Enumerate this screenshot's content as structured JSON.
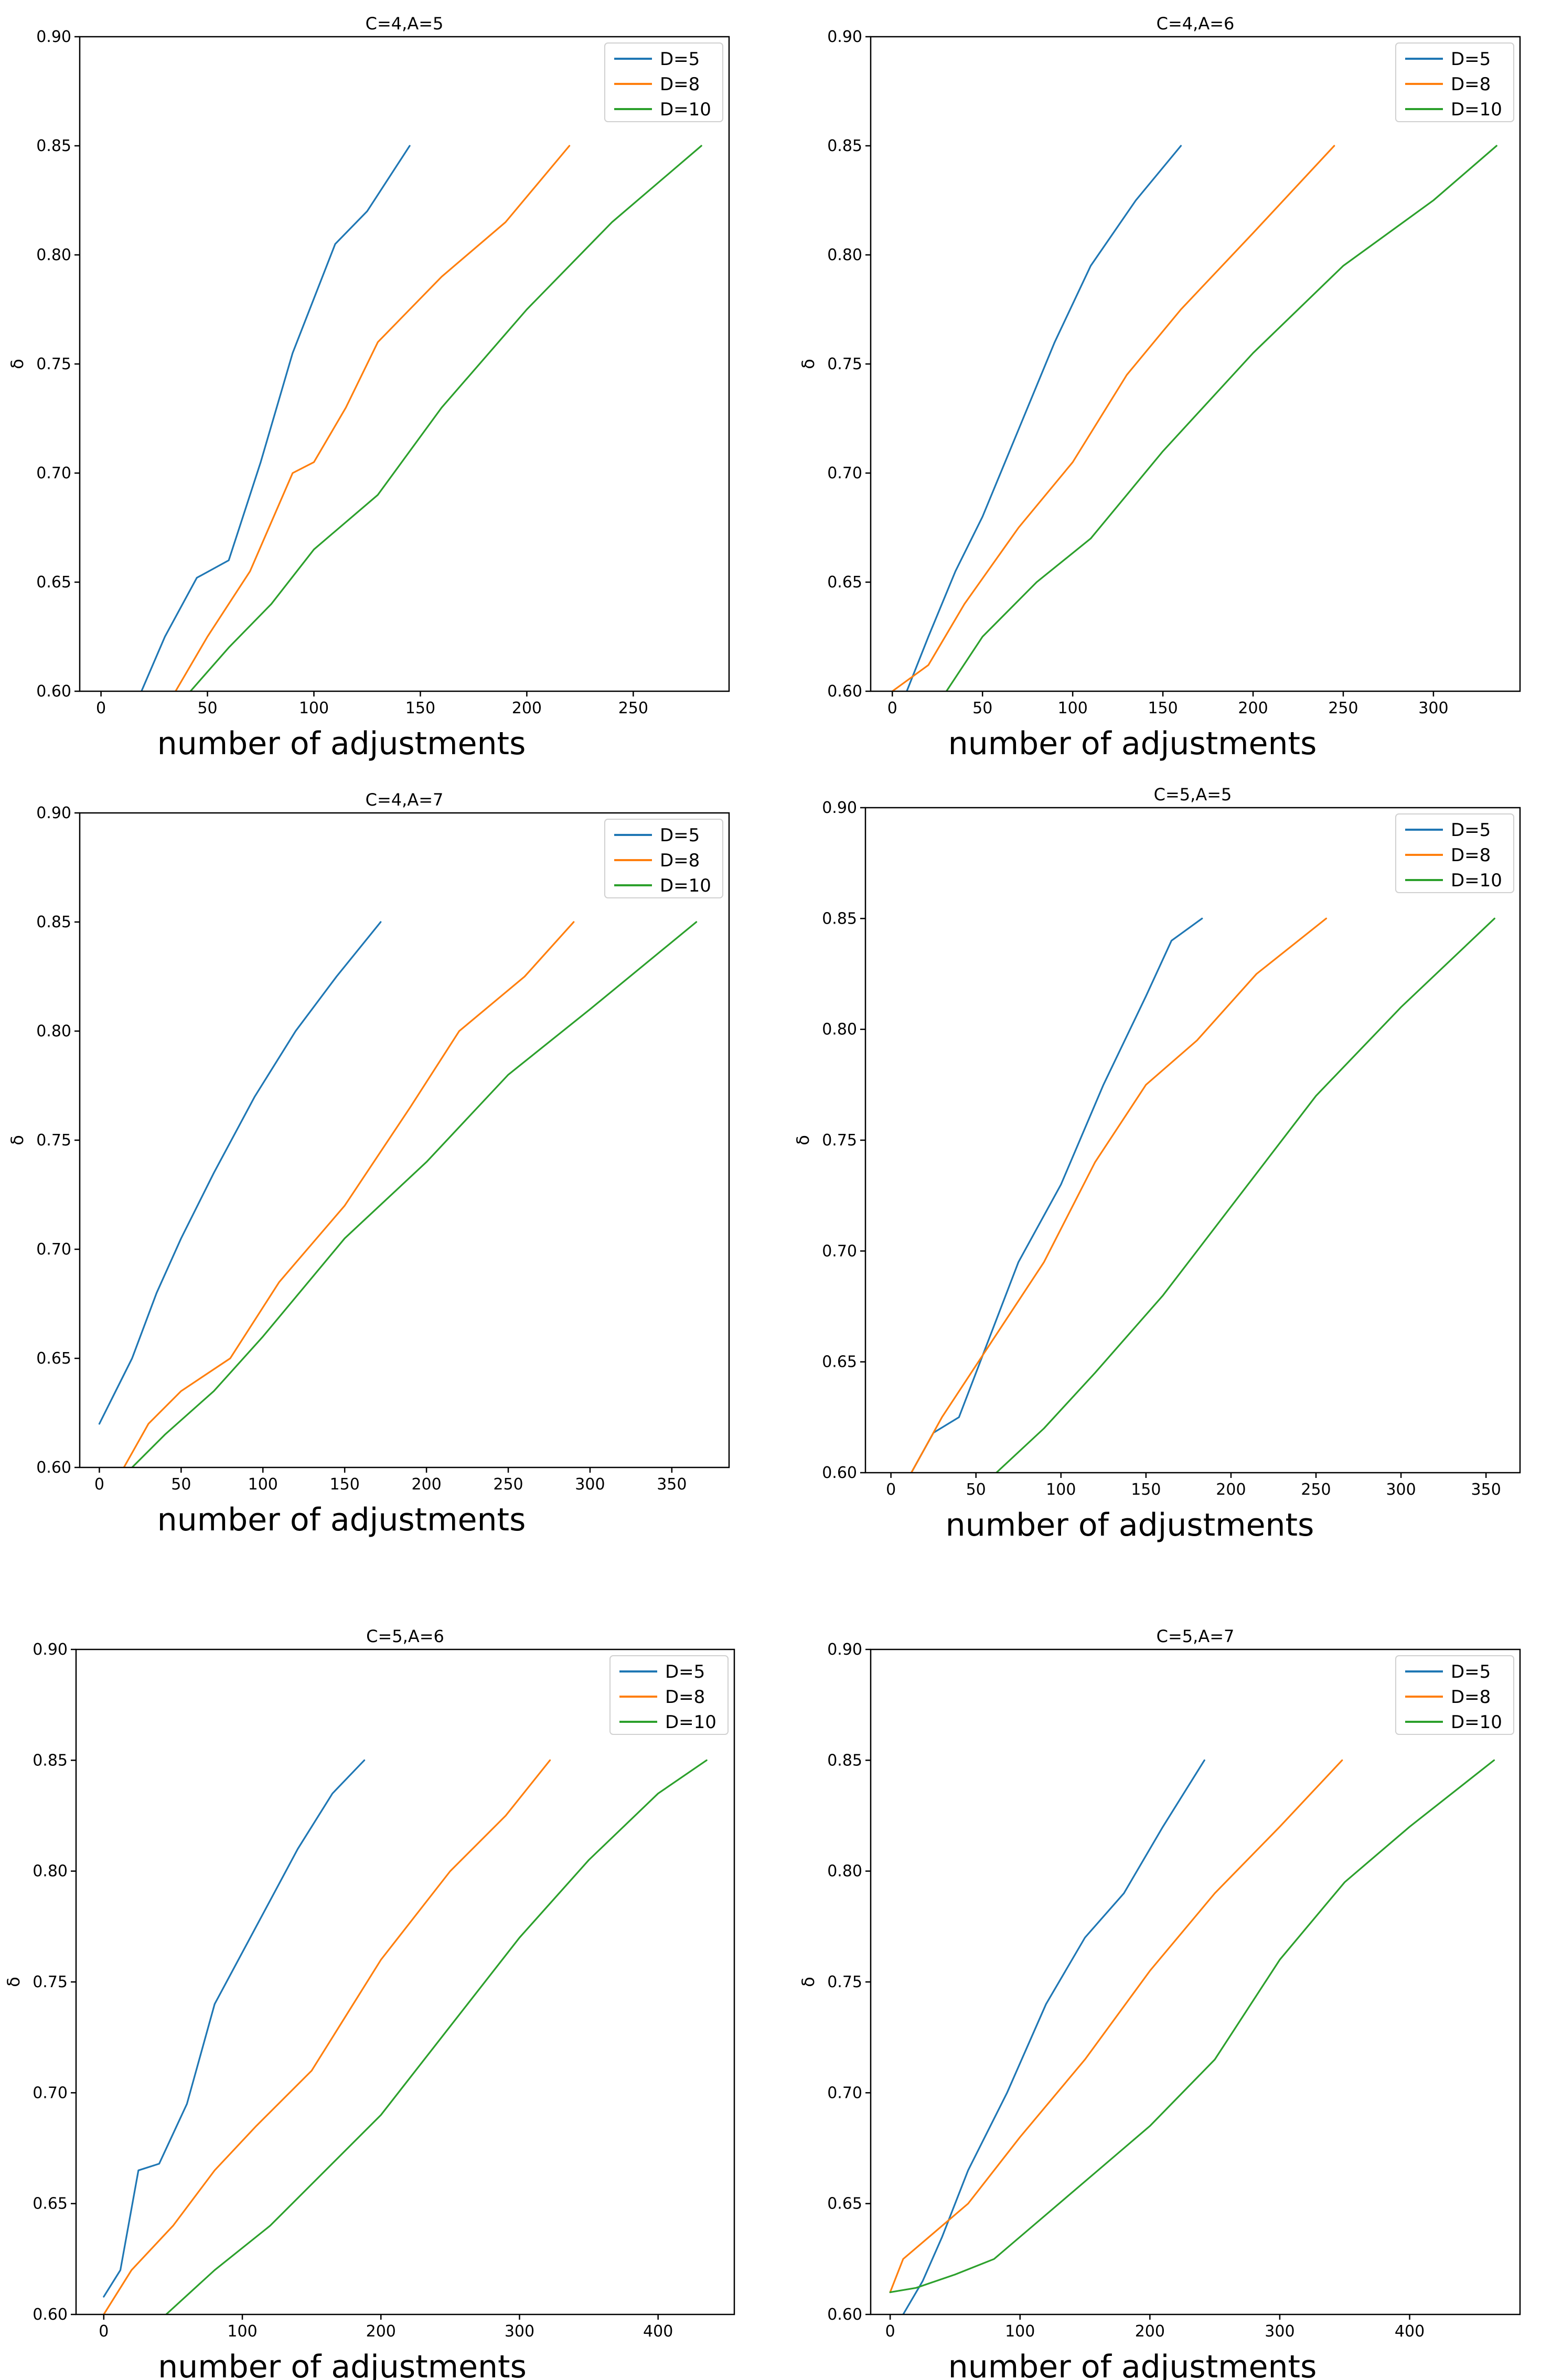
{
  "colors": {
    "D=5": "#1f77b4",
    "D=8": "#ff7f0e",
    "D=10": "#2ca02c"
  },
  "chart_data": [
    {
      "type": "line",
      "title": "C=4,A=5",
      "xlabel": "number of adjustments",
      "ylabel": "δ",
      "xlim": [
        -10,
        295
      ],
      "ylim": [
        0.6,
        0.9
      ],
      "xticks": [
        0,
        50,
        100,
        150,
        200,
        250
      ],
      "yticks": [
        0.6,
        0.65,
        0.7,
        0.75,
        0.8,
        0.85,
        0.9
      ],
      "ytick_labels": [
        "0.60",
        "0.65",
        "0.70",
        "0.75",
        "0.80",
        "0.85",
        "0.90"
      ],
      "legend": [
        "D=5",
        "D=8",
        "D=10"
      ],
      "series": [
        {
          "name": "D=5",
          "points": [
            [
              19,
              0.6
            ],
            [
              30,
              0.625
            ],
            [
              45,
              0.652
            ],
            [
              60,
              0.66
            ],
            [
              75,
              0.705
            ],
            [
              90,
              0.755
            ],
            [
              110,
              0.805
            ],
            [
              125,
              0.82
            ],
            [
              145,
              0.85
            ]
          ]
        },
        {
          "name": "D=8",
          "points": [
            [
              35,
              0.6
            ],
            [
              50,
              0.625
            ],
            [
              70,
              0.655
            ],
            [
              90,
              0.7
            ],
            [
              100,
              0.705
            ],
            [
              115,
              0.73
            ],
            [
              130,
              0.76
            ],
            [
              160,
              0.79
            ],
            [
              190,
              0.815
            ],
            [
              220,
              0.85
            ]
          ]
        },
        {
          "name": "D=10",
          "points": [
            [
              42,
              0.6
            ],
            [
              60,
              0.62
            ],
            [
              80,
              0.64
            ],
            [
              100,
              0.665
            ],
            [
              130,
              0.69
            ],
            [
              160,
              0.73
            ],
            [
              200,
              0.775
            ],
            [
              240,
              0.815
            ],
            [
              282,
              0.85
            ]
          ]
        }
      ]
    },
    {
      "type": "line",
      "title": "C=4,A=6",
      "xlabel": "number of adjustments",
      "ylabel": "δ",
      "xlim": [
        -12,
        348
      ],
      "ylim": [
        0.6,
        0.9
      ],
      "xticks": [
        0,
        50,
        100,
        150,
        200,
        250,
        300
      ],
      "yticks": [
        0.6,
        0.65,
        0.7,
        0.75,
        0.8,
        0.85,
        0.9
      ],
      "ytick_labels": [
        "0.60",
        "0.65",
        "0.70",
        "0.75",
        "0.80",
        "0.85",
        "0.90"
      ],
      "legend": [
        "D=5",
        "D=8",
        "D=10"
      ],
      "series": [
        {
          "name": "D=5",
          "points": [
            [
              8,
              0.6
            ],
            [
              20,
              0.625
            ],
            [
              35,
              0.655
            ],
            [
              50,
              0.68
            ],
            [
              70,
              0.72
            ],
            [
              90,
              0.76
            ],
            [
              110,
              0.795
            ],
            [
              135,
              0.825
            ],
            [
              160,
              0.85
            ]
          ]
        },
        {
          "name": "D=8",
          "points": [
            [
              0,
              0.6
            ],
            [
              20,
              0.612
            ],
            [
              40,
              0.64
            ],
            [
              70,
              0.675
            ],
            [
              100,
              0.705
            ],
            [
              130,
              0.745
            ],
            [
              160,
              0.775
            ],
            [
              200,
              0.81
            ],
            [
              245,
              0.85
            ]
          ]
        },
        {
          "name": "D=10",
          "points": [
            [
              30,
              0.6
            ],
            [
              50,
              0.625
            ],
            [
              80,
              0.65
            ],
            [
              110,
              0.67
            ],
            [
              150,
              0.71
            ],
            [
              200,
              0.755
            ],
            [
              250,
              0.795
            ],
            [
              300,
              0.825
            ],
            [
              335,
              0.85
            ]
          ]
        }
      ]
    },
    {
      "type": "line",
      "title": "C=4,A=7",
      "xlabel": "number of adjustments",
      "ylabel": "δ",
      "xlim": [
        -12,
        385
      ],
      "ylim": [
        0.6,
        0.9
      ],
      "xticks": [
        0,
        50,
        100,
        150,
        200,
        250,
        300,
        350
      ],
      "yticks": [
        0.6,
        0.65,
        0.7,
        0.75,
        0.8,
        0.85,
        0.9
      ],
      "ytick_labels": [
        "0.60",
        "0.65",
        "0.70",
        "0.75",
        "0.80",
        "0.85",
        "0.90"
      ],
      "legend": [
        "D=5",
        "D=8",
        "D=10"
      ],
      "series": [
        {
          "name": "D=5",
          "points": [
            [
              0,
              0.62
            ],
            [
              10,
              0.635
            ],
            [
              20,
              0.65
            ],
            [
              35,
              0.68
            ],
            [
              50,
              0.705
            ],
            [
              70,
              0.735
            ],
            [
              95,
              0.77
            ],
            [
              120,
              0.8
            ],
            [
              145,
              0.825
            ],
            [
              172,
              0.85
            ]
          ]
        },
        {
          "name": "D=8",
          "points": [
            [
              15,
              0.6
            ],
            [
              30,
              0.62
            ],
            [
              50,
              0.635
            ],
            [
              80,
              0.65
            ],
            [
              110,
              0.685
            ],
            [
              150,
              0.72
            ],
            [
              190,
              0.765
            ],
            [
              220,
              0.8
            ],
            [
              260,
              0.825
            ],
            [
              290,
              0.85
            ]
          ]
        },
        {
          "name": "D=10",
          "points": [
            [
              20,
              0.6
            ],
            [
              40,
              0.615
            ],
            [
              70,
              0.635
            ],
            [
              100,
              0.66
            ],
            [
              150,
              0.705
            ],
            [
              200,
              0.74
            ],
            [
              250,
              0.78
            ],
            [
              300,
              0.81
            ],
            [
              365,
              0.85
            ]
          ]
        }
      ]
    },
    {
      "type": "line",
      "title": "C=5,A=5",
      "xlabel": "number of adjustments",
      "ylabel": "δ",
      "xlim": [
        -15,
        370
      ],
      "ylim": [
        0.6,
        0.9
      ],
      "xticks": [
        0,
        50,
        100,
        150,
        200,
        250,
        300,
        350
      ],
      "yticks": [
        0.6,
        0.65,
        0.7,
        0.75,
        0.8,
        0.85,
        0.9
      ],
      "ytick_labels": [
        "0.60",
        "0.65",
        "0.70",
        "0.75",
        "0.80",
        "0.85",
        "0.90"
      ],
      "legend": [
        "D=5",
        "D=8",
        "D=10"
      ],
      "series": [
        {
          "name": "D=5",
          "points": [
            [
              12,
              0.6
            ],
            [
              25,
              0.618
            ],
            [
              40,
              0.625
            ],
            [
              55,
              0.655
            ],
            [
              75,
              0.695
            ],
            [
              100,
              0.73
            ],
            [
              125,
              0.775
            ],
            [
              150,
              0.815
            ],
            [
              165,
              0.84
            ],
            [
              183,
              0.85
            ]
          ]
        },
        {
          "name": "D=8",
          "points": [
            [
              12,
              0.6
            ],
            [
              30,
              0.625
            ],
            [
              60,
              0.66
            ],
            [
              90,
              0.695
            ],
            [
              120,
              0.74
            ],
            [
              150,
              0.775
            ],
            [
              180,
              0.795
            ],
            [
              215,
              0.825
            ],
            [
              256,
              0.85
            ]
          ]
        },
        {
          "name": "D=10",
          "points": [
            [
              62,
              0.6
            ],
            [
              90,
              0.62
            ],
            [
              120,
              0.645
            ],
            [
              160,
              0.68
            ],
            [
              200,
              0.72
            ],
            [
              250,
              0.77
            ],
            [
              300,
              0.81
            ],
            [
              355,
              0.85
            ]
          ]
        }
      ]
    },
    {
      "type": "line",
      "title": "C=5,A=6",
      "xlabel": "number of adjustments",
      "ylabel": "δ",
      "xlim": [
        -20,
        455
      ],
      "ylim": [
        0.6,
        0.9
      ],
      "xticks": [
        0,
        100,
        200,
        300,
        400
      ],
      "yticks": [
        0.6,
        0.65,
        0.7,
        0.75,
        0.8,
        0.85,
        0.9
      ],
      "ytick_labels": [
        "0.60",
        "0.65",
        "0.70",
        "0.75",
        "0.80",
        "0.85",
        "0.90"
      ],
      "legend": [
        "D=5",
        "D=8",
        "D=10"
      ],
      "series": [
        {
          "name": "D=5",
          "points": [
            [
              0,
              0.608
            ],
            [
              12,
              0.62
            ],
            [
              25,
              0.665
            ],
            [
              40,
              0.668
            ],
            [
              60,
              0.695
            ],
            [
              80,
              0.74
            ],
            [
              110,
              0.775
            ],
            [
              140,
              0.81
            ],
            [
              165,
              0.835
            ],
            [
              188,
              0.85
            ]
          ]
        },
        {
          "name": "D=8",
          "points": [
            [
              0,
              0.6
            ],
            [
              20,
              0.62
            ],
            [
              50,
              0.64
            ],
            [
              80,
              0.665
            ],
            [
              110,
              0.685
            ],
            [
              150,
              0.71
            ],
            [
              200,
              0.76
            ],
            [
              250,
              0.8
            ],
            [
              290,
              0.825
            ],
            [
              322,
              0.85
            ]
          ]
        },
        {
          "name": "D=10",
          "points": [
            [
              45,
              0.6
            ],
            [
              80,
              0.62
            ],
            [
              120,
              0.64
            ],
            [
              160,
              0.665
            ],
            [
              200,
              0.69
            ],
            [
              250,
              0.73
            ],
            [
              300,
              0.77
            ],
            [
              350,
              0.805
            ],
            [
              400,
              0.835
            ],
            [
              435,
              0.85
            ]
          ]
        }
      ]
    },
    {
      "type": "line",
      "title": "C=5,A=7",
      "xlabel": "number of adjustments",
      "ylabel": "δ",
      "xlim": [
        -15,
        485
      ],
      "ylim": [
        0.6,
        0.9
      ],
      "xticks": [
        0,
        100,
        200,
        300,
        400
      ],
      "yticks": [
        0.6,
        0.65,
        0.7,
        0.75,
        0.8,
        0.85,
        0.9
      ],
      "ytick_labels": [
        "0.60",
        "0.65",
        "0.70",
        "0.75",
        "0.80",
        "0.85",
        "0.90"
      ],
      "legend": [
        "D=5",
        "D=8",
        "D=10"
      ],
      "series": [
        {
          "name": "D=5",
          "points": [
            [
              10,
              0.6
            ],
            [
              25,
              0.615
            ],
            [
              40,
              0.635
            ],
            [
              60,
              0.665
            ],
            [
              90,
              0.7
            ],
            [
              120,
              0.74
            ],
            [
              150,
              0.77
            ],
            [
              180,
              0.79
            ],
            [
              210,
              0.82
            ],
            [
              242,
              0.85
            ]
          ]
        },
        {
          "name": "D=8",
          "points": [
            [
              0,
              0.61
            ],
            [
              10,
              0.625
            ],
            [
              30,
              0.635
            ],
            [
              60,
              0.65
            ],
            [
              100,
              0.68
            ],
            [
              150,
              0.715
            ],
            [
              200,
              0.755
            ],
            [
              250,
              0.79
            ],
            [
              300,
              0.82
            ],
            [
              348,
              0.85
            ]
          ]
        },
        {
          "name": "D=10",
          "points": [
            [
              0,
              0.61
            ],
            [
              20,
              0.612
            ],
            [
              50,
              0.618
            ],
            [
              80,
              0.625
            ],
            [
              120,
              0.645
            ],
            [
              160,
              0.665
            ],
            [
              200,
              0.685
            ],
            [
              250,
              0.715
            ],
            [
              300,
              0.76
            ],
            [
              350,
              0.795
            ],
            [
              400,
              0.82
            ],
            [
              465,
              0.85
            ]
          ]
        }
      ]
    }
  ]
}
